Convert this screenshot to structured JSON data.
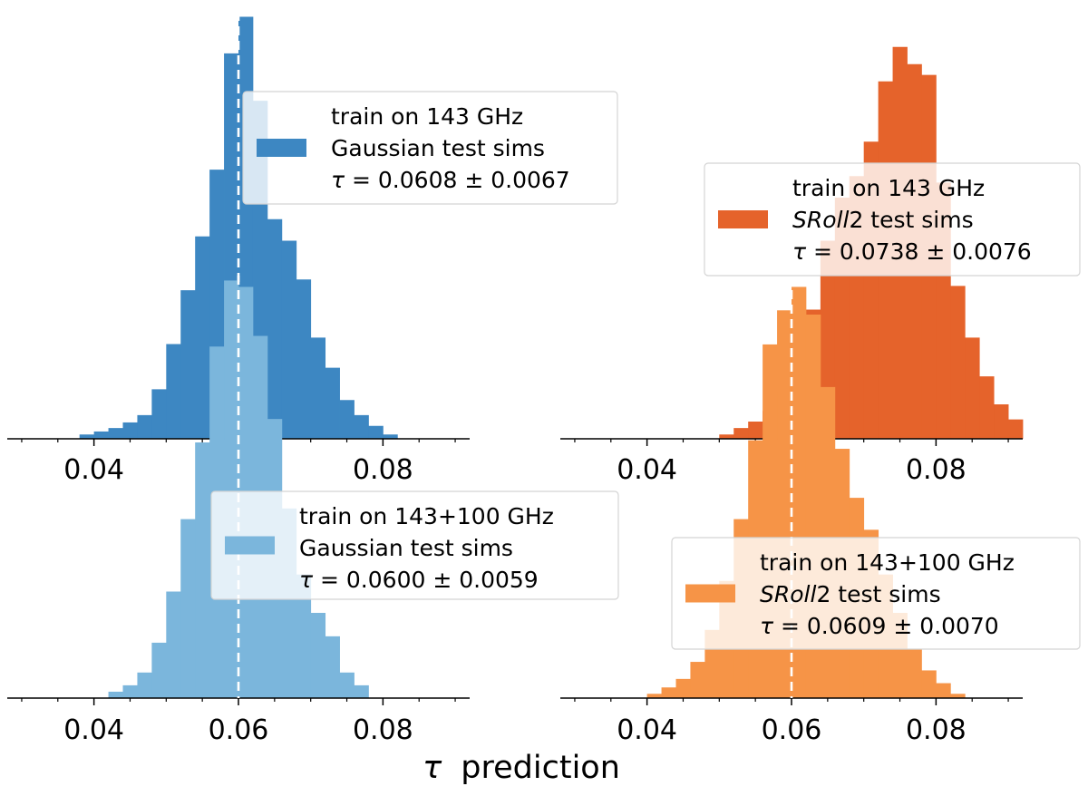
{
  "figure": {
    "xlabel_symbol": "τ",
    "xlabel_text": "prediction"
  },
  "chart_data": [
    {
      "type": "histogram",
      "panel": "top-left",
      "x_ticks": [
        "0.04",
        "0.06",
        "0.08"
      ],
      "series": [
        {
          "name": "train on 143 GHz | Gaussian test sims | τ = 0.0608 ± 0.0067",
          "color": "#3d87c2",
          "bin_width": 0.002,
          "bins": [
            [
              0.038,
              0.01
            ],
            [
              0.04,
              0.017
            ],
            [
              0.042,
              0.025
            ],
            [
              0.044,
              0.038
            ],
            [
              0.046,
              0.055
            ],
            [
              0.048,
              0.115
            ],
            [
              0.05,
              0.22
            ],
            [
              0.052,
              0.345
            ],
            [
              0.054,
              0.47
            ],
            [
              0.056,
              0.625
            ],
            [
              0.058,
              0.895
            ],
            [
              0.06,
              0.98
            ],
            [
              0.062,
              0.785
            ],
            [
              0.064,
              0.51
            ],
            [
              0.066,
              0.46
            ],
            [
              0.068,
              0.37
            ],
            [
              0.07,
              0.235
            ],
            [
              0.072,
              0.165
            ],
            [
              0.074,
              0.09
            ],
            [
              0.076,
              0.055
            ],
            [
              0.078,
              0.03
            ],
            [
              0.08,
              0.01
            ]
          ]
        },
        {
          "name": "train on 143+100 GHz | Gaussian test sims | τ = 0.0600 ± 0.0059",
          "color": "#7bb6dc",
          "bin_width": 0.002,
          "bins": [
            [
              0.042,
              0.015
            ],
            [
              0.044,
              0.03
            ],
            [
              0.046,
              0.06
            ],
            [
              0.048,
              0.13
            ],
            [
              0.05,
              0.25
            ],
            [
              0.052,
              0.42
            ],
            [
              0.054,
              0.6
            ],
            [
              0.056,
              0.825
            ],
            [
              0.058,
              0.98
            ],
            [
              0.06,
              0.965
            ],
            [
              0.062,
              0.85
            ],
            [
              0.064,
              0.655
            ],
            [
              0.066,
              0.445
            ],
            [
              0.068,
              0.29
            ],
            [
              0.07,
              0.2
            ],
            [
              0.072,
              0.145
            ],
            [
              0.074,
              0.06
            ],
            [
              0.076,
              0.03
            ]
          ]
        }
      ],
      "legends": [
        {
          "series": 0,
          "position": "upper-right",
          "lines": [
            "train on 143 GHz",
            "Gaussian test sims",
            "τ = 0.0608 ± 0.0067"
          ]
        },
        {
          "series": 1,
          "position": "middle-right",
          "lines": [
            "train on 143+100 GHz",
            "Gaussian test sims",
            "τ = 0.0600 ± 0.0059"
          ]
        }
      ],
      "reference_line": 0.06,
      "xlim": [
        0.028,
        0.092
      ]
    },
    {
      "type": "histogram",
      "panel": "top-right",
      "x_ticks": [
        "0.04",
        "0.06",
        "0.08"
      ],
      "series": [
        {
          "name": "train on 143 GHz | SRoll2 test sims | τ = 0.0738 ± 0.0076",
          "color": "#e5632b",
          "bin_width": 0.002,
          "bins": [
            [
              0.05,
              0.01
            ],
            [
              0.052,
              0.025
            ],
            [
              0.054,
              0.04
            ],
            [
              0.056,
              0.065
            ],
            [
              0.058,
              0.11
            ],
            [
              0.06,
              0.18
            ],
            [
              0.062,
              0.3
            ],
            [
              0.064,
              0.46
            ],
            [
              0.066,
              0.56
            ],
            [
              0.068,
              0.61
            ],
            [
              0.07,
              0.69
            ],
            [
              0.072,
              0.83
            ],
            [
              0.074,
              0.91
            ],
            [
              0.076,
              0.87
            ],
            [
              0.078,
              0.845
            ],
            [
              0.08,
              0.595
            ],
            [
              0.082,
              0.355
            ],
            [
              0.084,
              0.235
            ],
            [
              0.086,
              0.145
            ],
            [
              0.088,
              0.08
            ],
            [
              0.09,
              0.045
            ]
          ]
        },
        {
          "name": "train on 143+100 GHz | SRoll2 test sims | τ = 0.0609 ± 0.0070",
          "color": "#f69447",
          "bin_width": 0.002,
          "bins": [
            [
              0.04,
              0.01
            ],
            [
              0.042,
              0.025
            ],
            [
              0.044,
              0.045
            ],
            [
              0.046,
              0.085
            ],
            [
              0.048,
              0.16
            ],
            [
              0.05,
              0.275
            ],
            [
              0.052,
              0.42
            ],
            [
              0.054,
              0.605
            ],
            [
              0.056,
              0.83
            ],
            [
              0.058,
              0.91
            ],
            [
              0.06,
              0.965
            ],
            [
              0.062,
              0.9
            ],
            [
              0.064,
              0.73
            ],
            [
              0.066,
              0.585
            ],
            [
              0.068,
              0.47
            ],
            [
              0.07,
              0.395
            ],
            [
              0.072,
              0.29
            ],
            [
              0.074,
              0.2
            ],
            [
              0.076,
              0.115
            ],
            [
              0.078,
              0.065
            ],
            [
              0.08,
              0.035
            ],
            [
              0.082,
              0.01
            ]
          ]
        }
      ],
      "legends": [
        {
          "series": 0,
          "position": "upper-right",
          "lines": [
            "train on 143 GHz",
            "SRoll2 test sims",
            "τ = 0.0738 ± 0.0076"
          ]
        },
        {
          "series": 1,
          "position": "lower-right",
          "lines": [
            "train on 143+100 GHz",
            "SRoll2 test sims",
            "τ = 0.0609 ± 0.0070"
          ]
        }
      ],
      "reference_line": 0.06,
      "xlim": [
        0.028,
        0.092
      ]
    }
  ]
}
